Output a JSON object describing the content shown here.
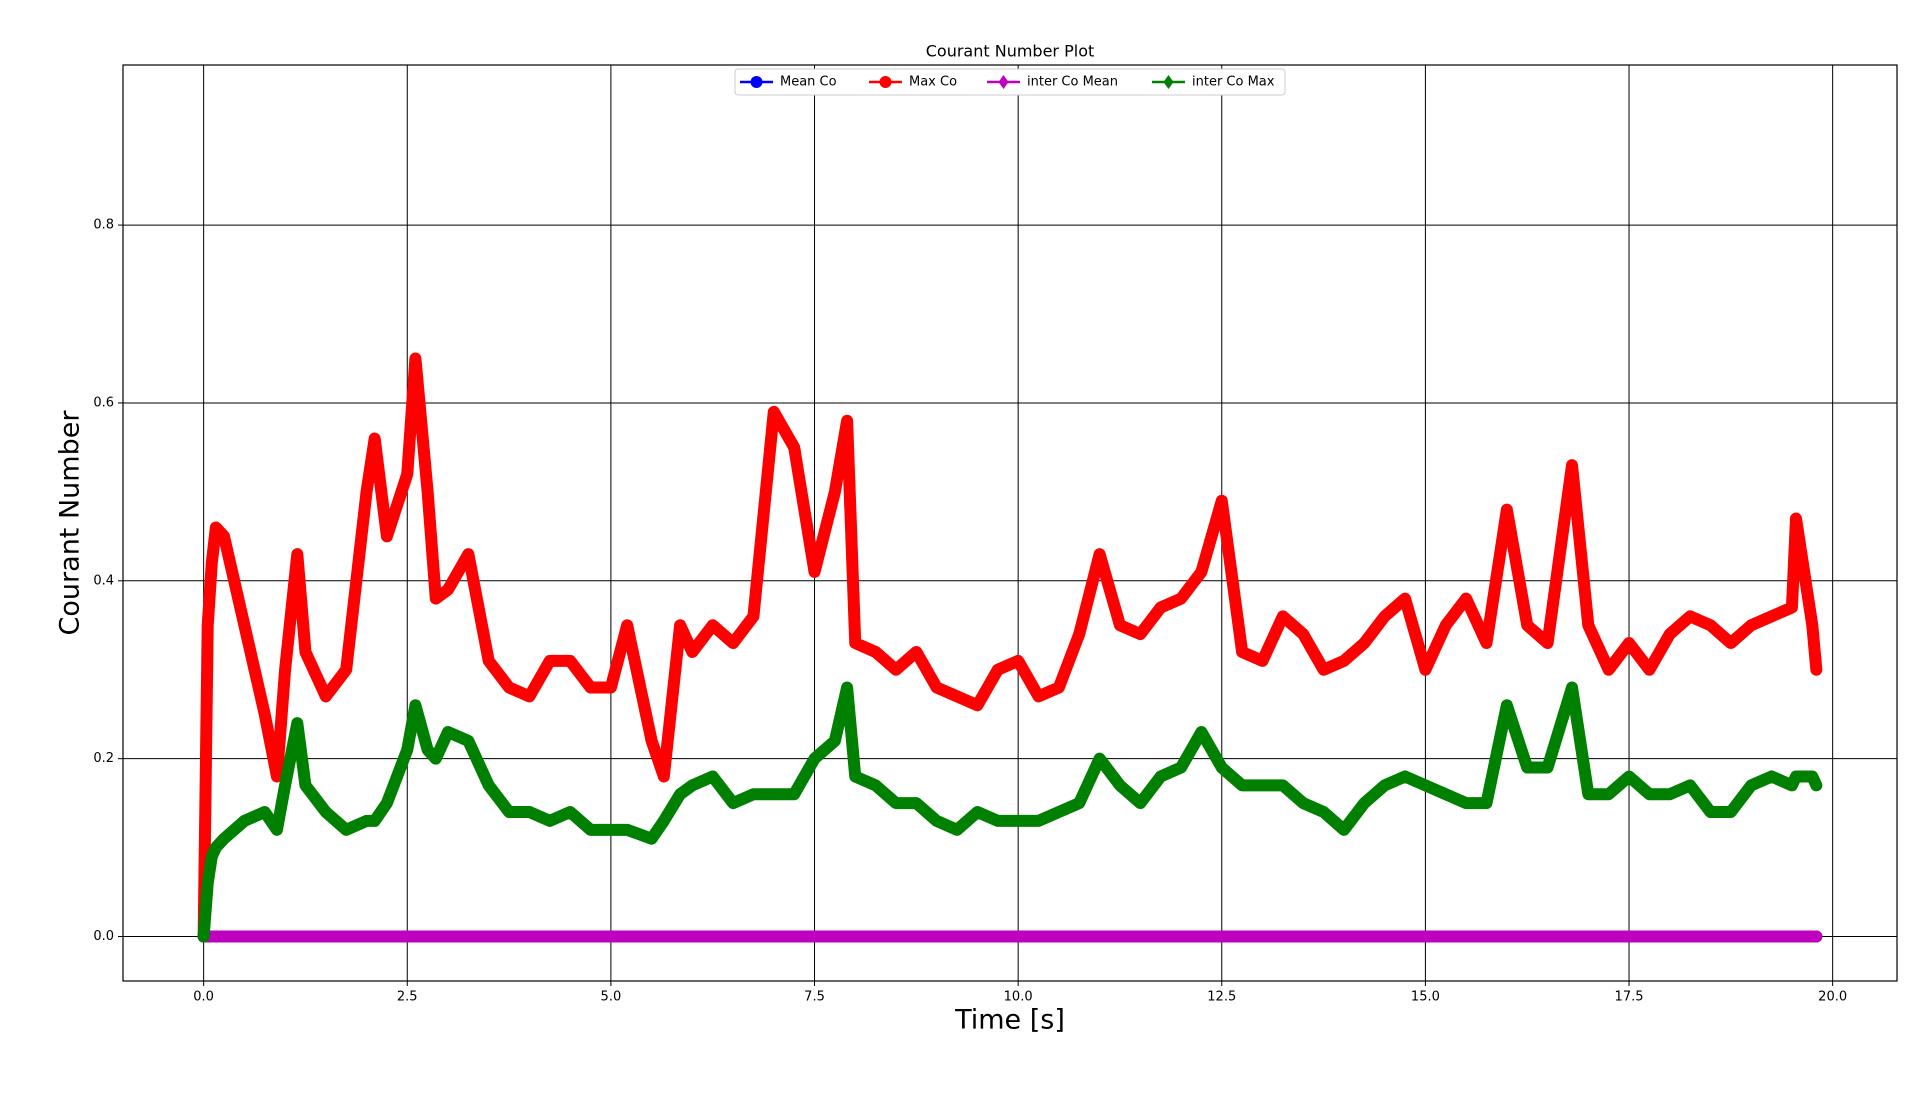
{
  "chart_data": {
    "type": "line",
    "title": "Courant Number Plot",
    "x_label": "Time [s]",
    "y_label": "Courant Number",
    "x": [
      0,
      0.05,
      0.1,
      0.15,
      0.25,
      0.5,
      0.75,
      0.9,
      1.0,
      1.15,
      1.25,
      1.5,
      1.75,
      2.0,
      2.1,
      2.25,
      2.5,
      2.6,
      2.75,
      2.85,
      3.0,
      3.25,
      3.5,
      3.75,
      4.0,
      4.25,
      4.5,
      4.75,
      5.0,
      5.2,
      5.5,
      5.65,
      5.85,
      6.0,
      6.25,
      6.5,
      6.75,
      7.0,
      7.25,
      7.5,
      7.75,
      7.9,
      8.0,
      8.25,
      8.5,
      8.75,
      9.0,
      9.25,
      9.5,
      9.75,
      10.0,
      10.25,
      10.5,
      10.75,
      11.0,
      11.25,
      11.5,
      11.75,
      12.0,
      12.25,
      12.5,
      12.75,
      13.0,
      13.25,
      13.5,
      13.75,
      14.0,
      14.25,
      14.5,
      14.75,
      15.0,
      15.25,
      15.5,
      15.75,
      16.0,
      16.25,
      16.5,
      16.8,
      17.0,
      17.25,
      17.5,
      17.75,
      18.0,
      18.25,
      18.5,
      18.75,
      19.0,
      19.25,
      19.5,
      19.55,
      19.75,
      19.8
    ],
    "series": [
      {
        "name": "Mean Co",
        "color": "#0000ff",
        "marker": "circle",
        "values": [
          0,
          0,
          0,
          0,
          0,
          0,
          0,
          0,
          0,
          0,
          0,
          0,
          0,
          0,
          0,
          0,
          0,
          0,
          0,
          0,
          0,
          0,
          0,
          0,
          0,
          0,
          0,
          0,
          0,
          0,
          0,
          0,
          0,
          0,
          0,
          0,
          0,
          0,
          0,
          0,
          0,
          0,
          0,
          0,
          0,
          0,
          0,
          0,
          0,
          0,
          0,
          0,
          0,
          0,
          0,
          0,
          0,
          0,
          0,
          0,
          0,
          0,
          0,
          0,
          0,
          0,
          0,
          0,
          0,
          0,
          0,
          0,
          0,
          0,
          0,
          0,
          0,
          0,
          0,
          0,
          0,
          0,
          0,
          0,
          0,
          0,
          0,
          0,
          0,
          0,
          0,
          0
        ]
      },
      {
        "name": "Max Co",
        "color": "#ff0000",
        "marker": "circle",
        "values": [
          0,
          0.35,
          0.42,
          0.46,
          0.45,
          0.35,
          0.25,
          0.18,
          0.3,
          0.43,
          0.32,
          0.27,
          0.3,
          0.5,
          0.56,
          0.45,
          0.52,
          0.65,
          0.5,
          0.38,
          0.39,
          0.43,
          0.31,
          0.28,
          0.27,
          0.31,
          0.31,
          0.28,
          0.28,
          0.35,
          0.22,
          0.18,
          0.35,
          0.32,
          0.35,
          0.33,
          0.36,
          0.59,
          0.55,
          0.41,
          0.5,
          0.58,
          0.33,
          0.32,
          0.3,
          0.32,
          0.28,
          0.27,
          0.26,
          0.3,
          0.31,
          0.27,
          0.28,
          0.34,
          0.43,
          0.35,
          0.34,
          0.37,
          0.38,
          0.41,
          0.49,
          0.32,
          0.31,
          0.36,
          0.34,
          0.3,
          0.31,
          0.33,
          0.36,
          0.38,
          0.3,
          0.35,
          0.38,
          0.33,
          0.48,
          0.35,
          0.33,
          0.53,
          0.35,
          0.3,
          0.33,
          0.3,
          0.34,
          0.36,
          0.35,
          0.33,
          0.35,
          0.36,
          0.37,
          0.47,
          0.35,
          0.3
        ]
      },
      {
        "name": "inter Co Mean",
        "color": "#bf00bf",
        "marker": "diamond",
        "values": [
          0,
          0,
          0,
          0,
          0,
          0,
          0,
          0,
          0,
          0,
          0,
          0,
          0,
          0,
          0,
          0,
          0,
          0,
          0,
          0,
          0,
          0,
          0,
          0,
          0,
          0,
          0,
          0,
          0,
          0,
          0,
          0,
          0,
          0,
          0,
          0,
          0,
          0,
          0,
          0,
          0,
          0,
          0,
          0,
          0,
          0,
          0,
          0,
          0,
          0,
          0,
          0,
          0,
          0,
          0,
          0,
          0,
          0,
          0,
          0,
          0,
          0,
          0,
          0,
          0,
          0,
          0,
          0,
          0,
          0,
          0,
          0,
          0,
          0,
          0,
          0,
          0,
          0,
          0,
          0,
          0,
          0,
          0,
          0,
          0,
          0,
          0,
          0,
          0,
          0,
          0,
          0
        ]
      },
      {
        "name": "inter Co Max",
        "color": "#008000",
        "marker": "diamond",
        "values": [
          0,
          0.06,
          0.09,
          0.1,
          0.11,
          0.13,
          0.14,
          0.12,
          0.17,
          0.24,
          0.17,
          0.14,
          0.12,
          0.13,
          0.13,
          0.15,
          0.21,
          0.26,
          0.21,
          0.2,
          0.23,
          0.22,
          0.17,
          0.14,
          0.14,
          0.13,
          0.14,
          0.12,
          0.12,
          0.12,
          0.11,
          0.13,
          0.16,
          0.17,
          0.18,
          0.15,
          0.16,
          0.16,
          0.16,
          0.2,
          0.22,
          0.28,
          0.18,
          0.17,
          0.15,
          0.15,
          0.13,
          0.12,
          0.14,
          0.13,
          0.13,
          0.13,
          0.14,
          0.15,
          0.2,
          0.17,
          0.15,
          0.18,
          0.19,
          0.23,
          0.19,
          0.17,
          0.17,
          0.17,
          0.15,
          0.14,
          0.12,
          0.15,
          0.17,
          0.18,
          0.17,
          0.16,
          0.15,
          0.15,
          0.26,
          0.19,
          0.19,
          0.28,
          0.16,
          0.16,
          0.18,
          0.16,
          0.16,
          0.17,
          0.14,
          0.14,
          0.17,
          0.18,
          0.17,
          0.18,
          0.18,
          0.17
        ]
      }
    ],
    "xlim": [
      -0.99,
      20.79
    ],
    "xticks": [
      {
        "value": 0,
        "label": "0.0"
      },
      2.5,
      {
        "value": 5,
        "label": "5.0"
      },
      7.5,
      {
        "value": 10,
        "label": "10.0"
      },
      12.5,
      {
        "value": 15,
        "label": "15.0"
      },
      17.5,
      {
        "value": 20,
        "label": "20.0"
      }
    ],
    "ylim": [
      -0.05,
      0.98
    ],
    "yticks": [
      {
        "value": 0,
        "label": "0.0"
      },
      0.2,
      0.4,
      0.6,
      0.8
    ],
    "grid": true,
    "legend": "upper center"
  }
}
